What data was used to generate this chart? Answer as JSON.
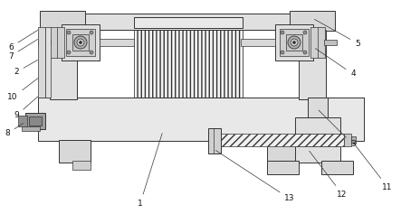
{
  "bg_color": "#ffffff",
  "lc": "#333333",
  "fc_light": "#eeeeee",
  "fc_med": "#d8d8d8",
  "fc_dark": "#b8b8b8",
  "fc_darker": "#989898",
  "hatch_brush": "||||",
  "hatch_screw": "////",
  "figsize": [
    4.43,
    2.37
  ],
  "dpi": 100
}
